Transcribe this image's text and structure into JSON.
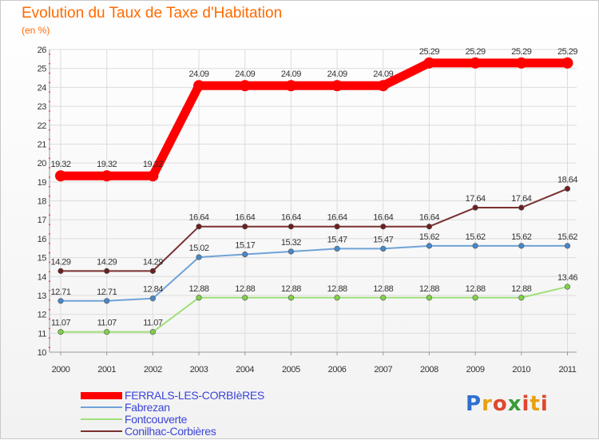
{
  "chart_data": {
    "type": "line",
    "title": "Evolution du Taux de Taxe d'Habitation",
    "subtitle": "(en %)",
    "xlabel": "",
    "ylabel": "",
    "categories": [
      "2000",
      "2001",
      "2002",
      "2003",
      "2004",
      "2005",
      "2006",
      "2007",
      "2008",
      "2009",
      "2010",
      "2011"
    ],
    "ylim": [
      10,
      26
    ],
    "yticks": [
      "10",
      "11",
      "12",
      "13",
      "14",
      "15",
      "16",
      "17",
      "18",
      "19",
      "20",
      "21",
      "22",
      "23",
      "24",
      "25",
      "26"
    ],
    "grid": true,
    "legend_position": "bottom-left",
    "series": [
      {
        "name": "FERRALS-LES-CORBIèRES",
        "color": "#ff0000",
        "marker_color": "#ff0000",
        "values": [
          19.32,
          19.32,
          19.32,
          24.09,
          24.09,
          24.09,
          24.09,
          24.09,
          25.29,
          25.29,
          25.29,
          25.29
        ],
        "labels": [
          "19.32",
          "19.32",
          "19.32",
          "24.09",
          "24.09",
          "24.09",
          "24.09",
          "24.09",
          "25.29",
          "25.29",
          "25.29",
          "25.29"
        ]
      },
      {
        "name": "Fabrezan",
        "color": "#6fa3d8",
        "marker_color": "#4a86c8",
        "values": [
          12.71,
          12.71,
          12.84,
          15.02,
          15.17,
          15.32,
          15.47,
          15.47,
          15.62,
          15.62,
          15.62,
          15.62
        ],
        "labels": [
          "12.71",
          "12.71",
          "12.84",
          "15.02",
          "15.17",
          "15.32",
          "15.47",
          "15.47",
          "15.62",
          "15.62",
          "15.62",
          "15.62"
        ]
      },
      {
        "name": "Fontcouverte",
        "color": "#9fe07a",
        "marker_color": "#7fd04a",
        "values": [
          11.07,
          11.07,
          11.07,
          12.88,
          12.88,
          12.88,
          12.88,
          12.88,
          12.88,
          12.88,
          12.88,
          13.46
        ],
        "labels": [
          "11.07",
          "11.07",
          "11.07",
          "12.88",
          "12.88",
          "12.88",
          "12.88",
          "12.88",
          "12.88",
          "12.88",
          "12.88",
          "13.46"
        ]
      },
      {
        "name": "Conilhac-Corbières",
        "color": "#7a3030",
        "marker_color": "#6a2020",
        "values": [
          14.29,
          14.29,
          14.29,
          16.64,
          16.64,
          16.64,
          16.64,
          16.64,
          16.64,
          17.64,
          17.64,
          18.64
        ],
        "labels": [
          "14.29",
          "14.29",
          "14.29",
          "16.64",
          "16.64",
          "16.64",
          "16.64",
          "16.64",
          "16.64",
          "17.64",
          "17.64",
          "18.64"
        ]
      }
    ]
  },
  "logo": {
    "text": "Proxiti",
    "colors": [
      "#2f6fd1",
      "#e8a010",
      "#3a9a3a",
      "#e0462e"
    ]
  }
}
